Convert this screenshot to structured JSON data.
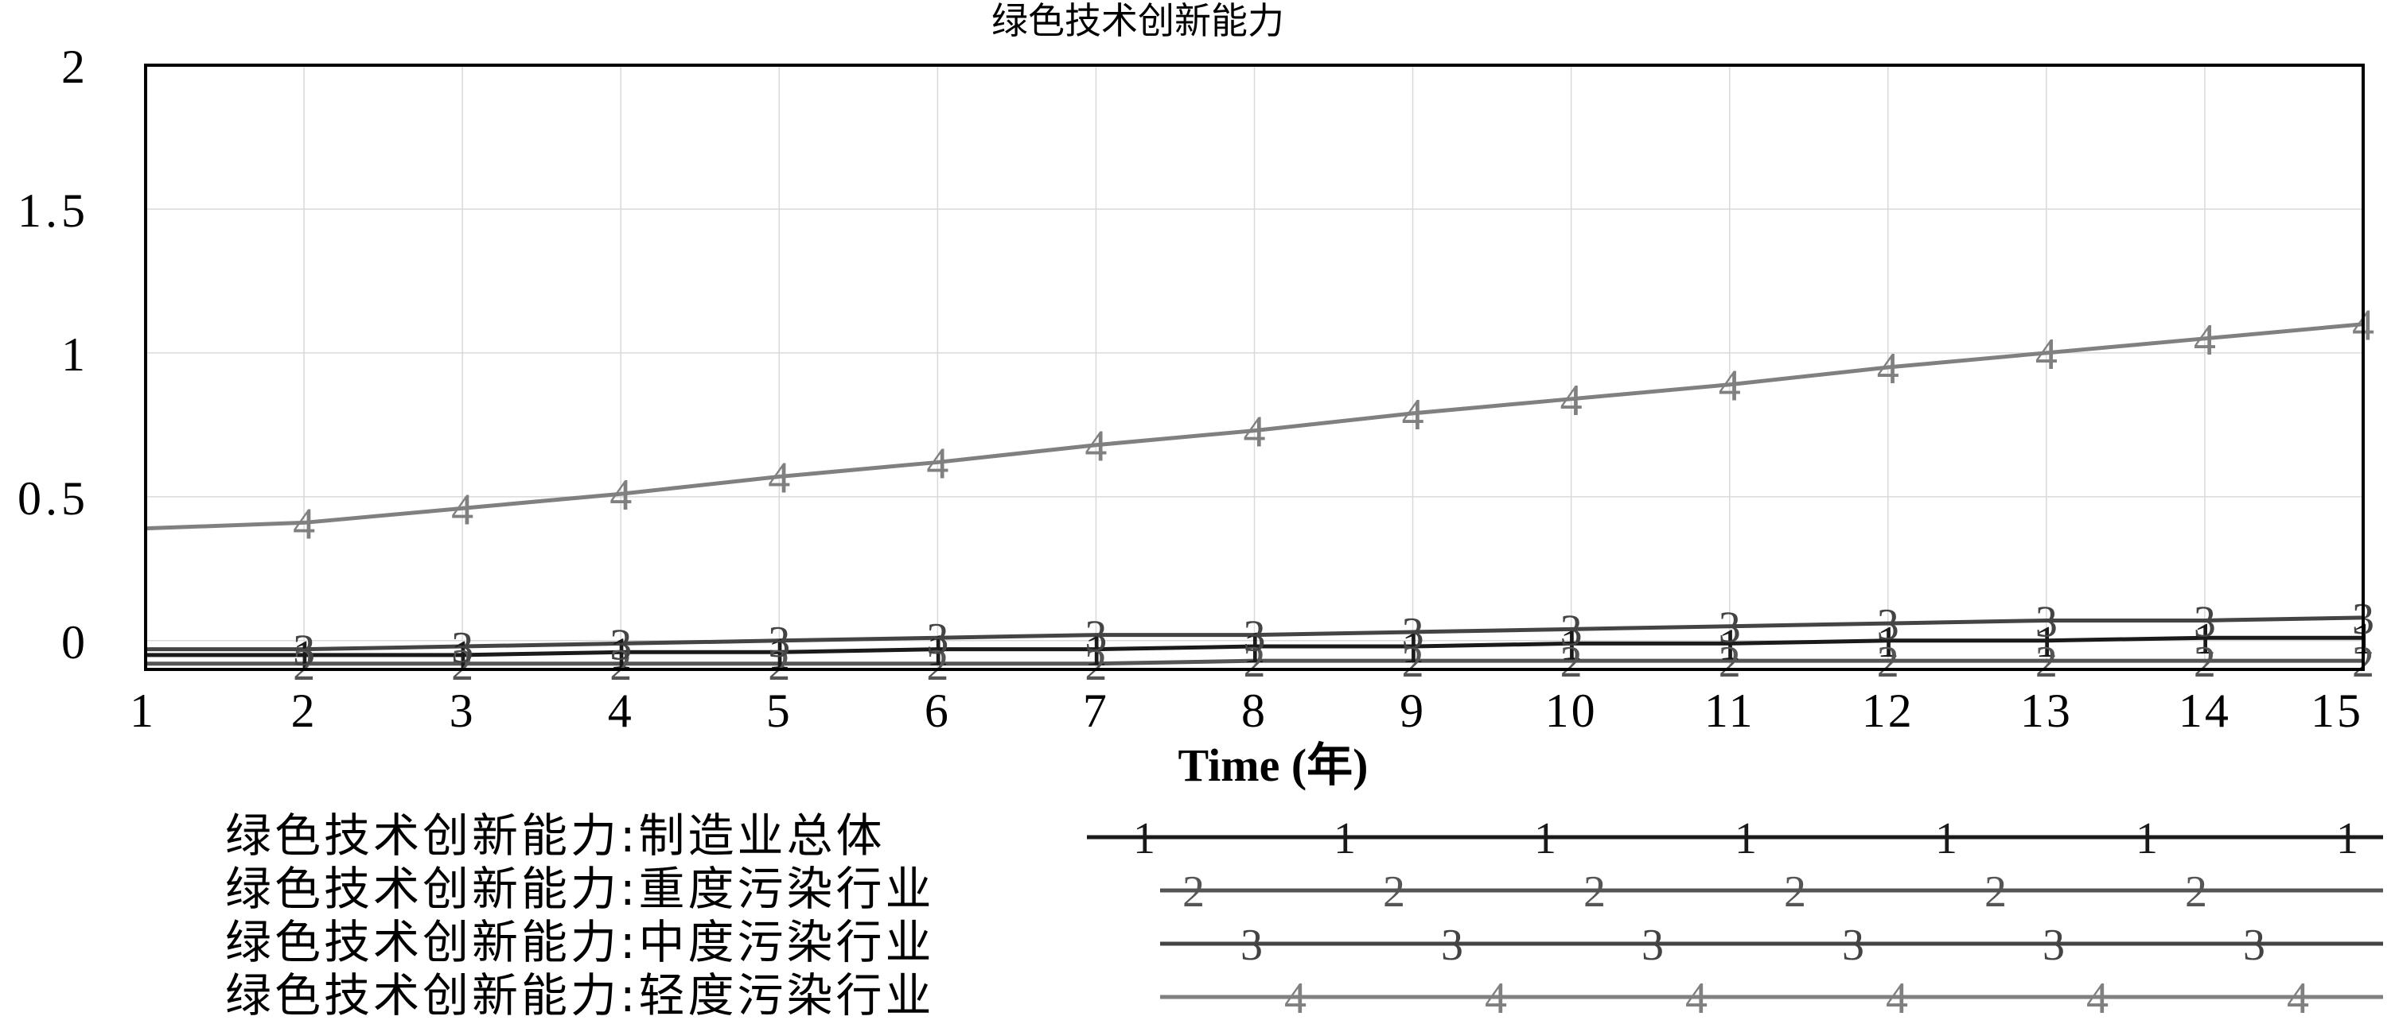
{
  "chart_data": {
    "type": "line",
    "title": "绿色技术创新能力",
    "xlabel": "Time (年)",
    "ylabel": "",
    "x": [
      1,
      2,
      3,
      4,
      5,
      6,
      7,
      8,
      9,
      10,
      11,
      12,
      13,
      14,
      15
    ],
    "x_ticks": [
      "1",
      "2",
      "3",
      "4",
      "5",
      "6",
      "7",
      "8",
      "9",
      "10",
      "11",
      "12",
      "13",
      "14",
      "15"
    ],
    "xlim": [
      1,
      15
    ],
    "ylim": [
      -0.1,
      2
    ],
    "y_ticks": [
      "2",
      "1.5",
      "1",
      "0.5",
      "0"
    ],
    "y_tick_values": [
      2,
      1.5,
      1,
      0.5,
      0
    ],
    "grid": true,
    "legend_position": "bottom",
    "series": [
      {
        "name": "绿色技术创新能力:制造业总体",
        "marker": "1",
        "color": "#1a1a1a",
        "values": [
          -0.05,
          -0.05,
          -0.05,
          -0.04,
          -0.04,
          -0.03,
          -0.03,
          -0.02,
          -0.02,
          -0.01,
          -0.01,
          0.0,
          0.0,
          0.01,
          0.01
        ]
      },
      {
        "name": "绿色技术创新能力:重度污染行业",
        "marker": "2",
        "color": "#555555",
        "values": [
          -0.08,
          -0.08,
          -0.08,
          -0.08,
          -0.08,
          -0.08,
          -0.08,
          -0.07,
          -0.07,
          -0.07,
          -0.07,
          -0.07,
          -0.07,
          -0.07,
          -0.07
        ]
      },
      {
        "name": "绿色技术创新能力:中度污染行业",
        "marker": "3",
        "color": "#444444",
        "values": [
          -0.03,
          -0.03,
          -0.02,
          -0.01,
          0.0,
          0.01,
          0.02,
          0.02,
          0.03,
          0.04,
          0.05,
          0.06,
          0.07,
          0.07,
          0.08
        ]
      },
      {
        "name": "绿色技术创新能力:轻度污染行业",
        "marker": "4",
        "color": "#808080",
        "values": [
          0.39,
          0.41,
          0.46,
          0.51,
          0.57,
          0.62,
          0.68,
          0.73,
          0.79,
          0.84,
          0.89,
          0.95,
          1.0,
          1.05,
          1.1
        ]
      }
    ]
  }
}
